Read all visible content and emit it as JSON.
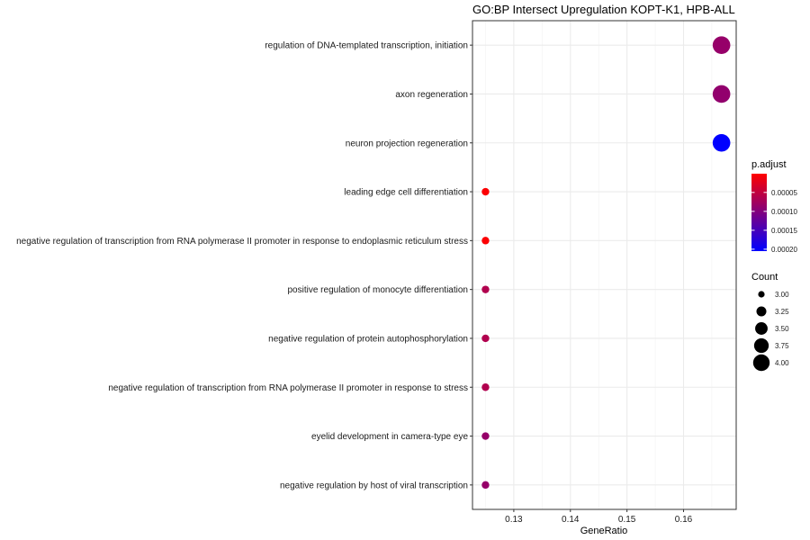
{
  "chart_data": {
    "type": "scatter",
    "title": "GO:BP Intersect Upregulation KOPT-K1, HPB-ALL",
    "xlabel": "GeneRatio",
    "ylabel": "",
    "xlim": [
      0.1227,
      0.1693
    ],
    "x_ticks": [
      0.13,
      0.14,
      0.15,
      0.16
    ],
    "x_tick_labels": [
      "0.13",
      "0.14",
      "0.15",
      "0.16"
    ],
    "grid": true,
    "legend_position": "right",
    "categories": [
      "regulation of DNA-templated transcription, initiation",
      "axon regeneration",
      "neuron projection regeneration",
      "leading edge cell differentiation",
      "negative regulation of transcription from RNA polymerase II promoter in response to endoplasmic reticulum stress",
      "positive regulation of monocyte differentiation",
      "negative regulation of protein autophosphorylation",
      "negative regulation of transcription from RNA polymerase II promoter in response to stress",
      "eyelid development in camera-type eye",
      "negative regulation by host of viral transcription"
    ],
    "points": [
      {
        "gene_ratio": 0.1667,
        "count": 4,
        "p_adjust": 8.5e-05
      },
      {
        "gene_ratio": 0.1667,
        "count": 4,
        "p_adjust": 8.8e-05
      },
      {
        "gene_ratio": 0.1667,
        "count": 4,
        "p_adjust": 0.000205
      },
      {
        "gene_ratio": 0.125,
        "count": 3,
        "p_adjust": 3e-06
      },
      {
        "gene_ratio": 0.125,
        "count": 3,
        "p_adjust": 3e-06
      },
      {
        "gene_ratio": 0.125,
        "count": 3,
        "p_adjust": 6.3e-05
      },
      {
        "gene_ratio": 0.125,
        "count": 3,
        "p_adjust": 6.3e-05
      },
      {
        "gene_ratio": 0.125,
        "count": 3,
        "p_adjust": 6.3e-05
      },
      {
        "gene_ratio": 0.125,
        "count": 3,
        "p_adjust": 8.5e-05
      },
      {
        "gene_ratio": 0.125,
        "count": 3,
        "p_adjust": 8.5e-05
      }
    ],
    "color_legend": {
      "title": "p.adjust",
      "low_color": "#ff0000",
      "high_color": "#0000ff",
      "range": [
        5e-07,
        0.000205
      ],
      "ticks": [
        5e-05,
        0.0001,
        0.00015,
        0.0002
      ],
      "tick_labels": [
        "0.00005",
        "0.00010",
        "0.00015",
        "0.00020"
      ]
    },
    "size_legend": {
      "title": "Count",
      "values": [
        3.0,
        3.25,
        3.5,
        3.75,
        4.0
      ],
      "labels": [
        "3.00",
        "3.25",
        "3.50",
        "3.75",
        "4.00"
      ],
      "color": "#000000"
    }
  }
}
